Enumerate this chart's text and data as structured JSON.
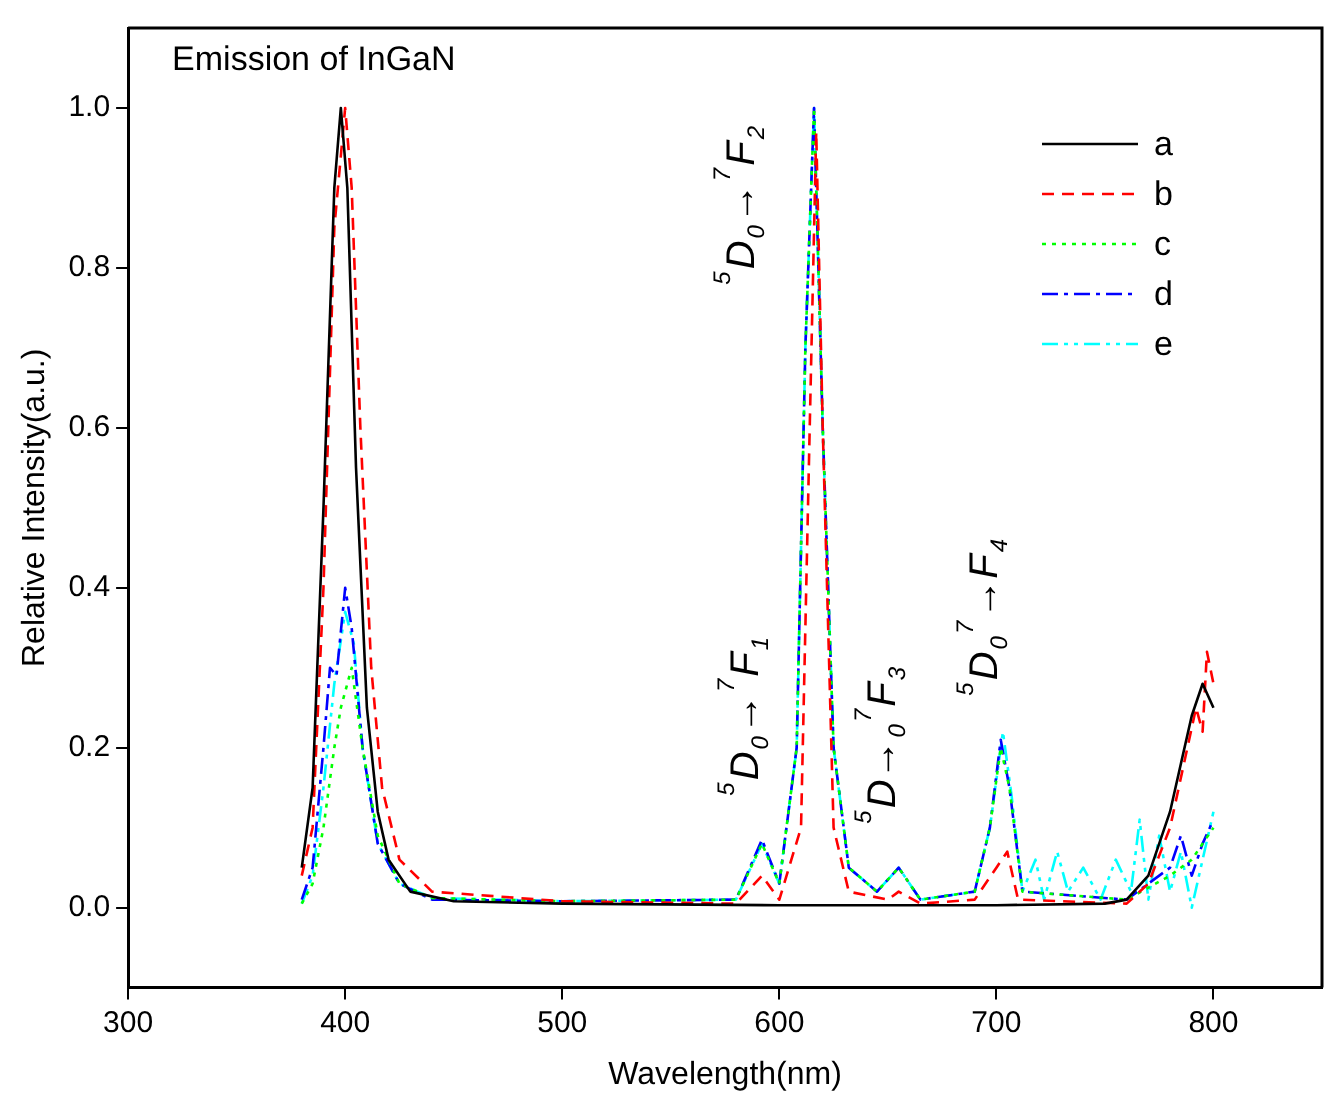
{
  "chart_data": {
    "type": "line",
    "title": "Emission of InGaN",
    "xlabel": "Wavelength(nm)",
    "ylabel": "Relative Intensity(a.u.)",
    "xlim": [
      300,
      850
    ],
    "xticks": [
      300,
      400,
      500,
      600,
      700,
      800
    ],
    "ylim": [
      -0.1,
      1.1
    ],
    "yticks": [
      {
        "value": 0,
        "label": "0.0"
      },
      {
        "value": 0.2,
        "label": "0.2"
      },
      {
        "value": 0.4,
        "label": "0.4"
      },
      {
        "value": 0.6,
        "label": "0.6"
      },
      {
        "value": 0.8,
        "label": "0.8"
      },
      {
        "value": 1,
        "label": "1.0"
      }
    ],
    "grid": false,
    "legend": "top right",
    "marker": "none",
    "series": [
      {
        "name": "a",
        "color": "#000000",
        "line_style": "solid",
        "x": [
          380,
          385,
          390,
          395,
          398,
          401,
          405,
          410,
          415,
          420,
          430,
          450,
          500,
          600,
          700,
          750,
          760,
          770,
          780,
          790,
          795,
          800
        ],
        "values": [
          0.05,
          0.15,
          0.5,
          0.9,
          1.0,
          0.9,
          0.55,
          0.25,
          0.12,
          0.06,
          0.02,
          0.008,
          0.005,
          0.003,
          0.003,
          0.005,
          0.01,
          0.04,
          0.12,
          0.24,
          0.28,
          0.25
        ]
      },
      {
        "name": "b",
        "color": "#ff0000",
        "line_style": "dashed",
        "x": [
          380,
          385,
          390,
          395,
          400,
          403,
          407,
          412,
          417,
          425,
          440,
          500,
          580,
          592,
          600,
          610,
          614,
          617,
          620,
          625,
          632,
          650,
          655,
          665,
          690,
          700,
          705,
          710,
          760,
          770,
          780,
          788,
          792,
          795,
          797,
          800
        ],
        "values": [
          0.04,
          0.1,
          0.4,
          0.85,
          1.0,
          0.9,
          0.6,
          0.3,
          0.15,
          0.06,
          0.02,
          0.008,
          0.005,
          0.04,
          0.01,
          0.1,
          0.6,
          0.97,
          0.6,
          0.1,
          0.02,
          0.01,
          0.02,
          0.005,
          0.01,
          0.05,
          0.07,
          0.01,
          0.005,
          0.03,
          0.1,
          0.2,
          0.25,
          0.22,
          0.32,
          0.28
        ]
      },
      {
        "name": "c",
        "color": "#00ff00",
        "line_style": "dotted",
        "x": [
          380,
          385,
          390,
          395,
          398,
          403,
          408,
          415,
          425,
          440,
          500,
          580,
          592,
          600,
          608,
          612,
          616,
          620,
          625,
          632,
          645,
          655,
          665,
          690,
          697,
          702,
          706,
          712,
          760,
          780,
          790,
          800
        ],
        "values": [
          0.005,
          0.03,
          0.1,
          0.2,
          0.25,
          0.3,
          0.2,
          0.09,
          0.03,
          0.012,
          0.008,
          0.01,
          0.08,
          0.03,
          0.2,
          0.7,
          1.0,
          0.6,
          0.2,
          0.05,
          0.02,
          0.05,
          0.01,
          0.02,
          0.1,
          0.2,
          0.15,
          0.02,
          0.01,
          0.04,
          0.06,
          0.1
        ]
      },
      {
        "name": "d",
        "color": "#0000ff",
        "line_style": "dashdot",
        "x": [
          380,
          385,
          390,
          393,
          396,
          400,
          403,
          408,
          415,
          425,
          440,
          500,
          580,
          592,
          600,
          608,
          612,
          616,
          620,
          625,
          632,
          645,
          655,
          665,
          690,
          697,
          702,
          706,
          712,
          760,
          780,
          785,
          790,
          795,
          800
        ],
        "values": [
          0.01,
          0.05,
          0.2,
          0.3,
          0.29,
          0.4,
          0.35,
          0.2,
          0.08,
          0.03,
          0.01,
          0.008,
          0.01,
          0.085,
          0.03,
          0.2,
          0.7,
          1.0,
          0.6,
          0.2,
          0.05,
          0.02,
          0.05,
          0.01,
          0.02,
          0.1,
          0.21,
          0.15,
          0.02,
          0.01,
          0.05,
          0.09,
          0.04,
          0.08,
          0.11
        ]
      },
      {
        "name": "e",
        "color": "#00ffff",
        "line_style": "dashdotdot",
        "x": [
          380,
          385,
          390,
          395,
          400,
          404,
          408,
          415,
          425,
          440,
          500,
          580,
          592,
          600,
          608,
          612,
          616,
          620,
          625,
          632,
          645,
          655,
          665,
          690,
          697,
          703,
          707,
          712,
          718,
          722,
          728,
          733,
          740,
          748,
          755,
          762,
          766,
          770,
          775,
          780,
          785,
          790,
          795,
          800
        ],
        "values": [
          0.005,
          0.04,
          0.15,
          0.28,
          0.37,
          0.33,
          0.2,
          0.08,
          0.03,
          0.012,
          0.008,
          0.01,
          0.08,
          0.03,
          0.2,
          0.7,
          1.0,
          0.6,
          0.2,
          0.05,
          0.02,
          0.05,
          0.01,
          0.02,
          0.1,
          0.22,
          0.14,
          0.02,
          0.06,
          0.01,
          0.07,
          0.02,
          0.05,
          0.01,
          0.06,
          0.02,
          0.11,
          0.01,
          0.09,
          0.02,
          0.07,
          0.0,
          0.06,
          0.12
        ]
      }
    ],
    "annotations": [
      {
        "text": "$^{5}$D$_{0}$→$^{7}$F$_{2}$",
        "x": 616,
        "y": 1.0
      },
      {
        "text": "$^{5}$D$_{0}$→$^{7}$F$_{1}$",
        "x": 592,
        "y": 0.085
      },
      {
        "text": "$^{5}$D→$_{0}$$^{7}$F$_{3}$",
        "x": 655,
        "y": 0.05
      },
      {
        "text": "$^{5}$D$_{0}$$^{7}$→F$_{4}$",
        "x": 702,
        "y": 0.21
      }
    ]
  }
}
